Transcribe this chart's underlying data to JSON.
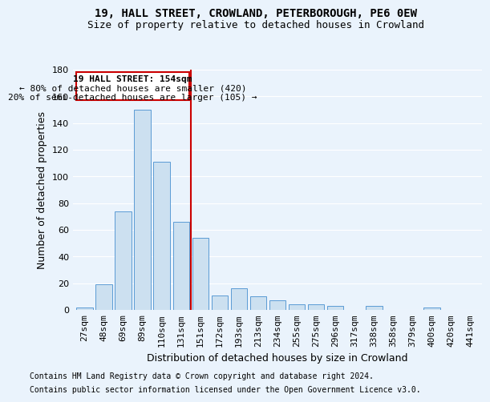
{
  "title1": "19, HALL STREET, CROWLAND, PETERBOROUGH, PE6 0EW",
  "title2": "Size of property relative to detached houses in Crowland",
  "xlabel": "Distribution of detached houses by size in Crowland",
  "ylabel": "Number of detached properties",
  "footnote1": "Contains HM Land Registry data © Crown copyright and database right 2024.",
  "footnote2": "Contains public sector information licensed under the Open Government Licence v3.0.",
  "categories": [
    "27sqm",
    "48sqm",
    "69sqm",
    "89sqm",
    "110sqm",
    "131sqm",
    "151sqm",
    "172sqm",
    "193sqm",
    "213sqm",
    "234sqm",
    "255sqm",
    "275sqm",
    "296sqm",
    "317sqm",
    "338sqm",
    "358sqm",
    "379sqm",
    "400sqm",
    "420sqm",
    "441sqm"
  ],
  "values": [
    2,
    19,
    74,
    150,
    111,
    66,
    54,
    11,
    16,
    10,
    7,
    4,
    4,
    3,
    0,
    3,
    0,
    0,
    2,
    0,
    0
  ],
  "bar_color": "#cce0f0",
  "bar_edge_color": "#5b9bd5",
  "vline_x_idx": 6,
  "vline_color": "#cc0000",
  "annotation_title": "19 HALL STREET: 154sqm",
  "annotation_line1": "← 80% of detached houses are smaller (420)",
  "annotation_line2": "20% of semi-detached houses are larger (105) →",
  "annotation_box_color": "#cc0000",
  "ylim": [
    0,
    180
  ],
  "yticks": [
    0,
    20,
    40,
    60,
    80,
    100,
    120,
    140,
    160,
    180
  ],
  "bg_color": "#eaf3fc",
  "plot_bg_color": "#eaf3fc",
  "grid_color": "#ffffff",
  "title1_fontsize": 10,
  "title2_fontsize": 9,
  "xlabel_fontsize": 9,
  "ylabel_fontsize": 9,
  "tick_fontsize": 8,
  "annotation_fontsize": 8
}
